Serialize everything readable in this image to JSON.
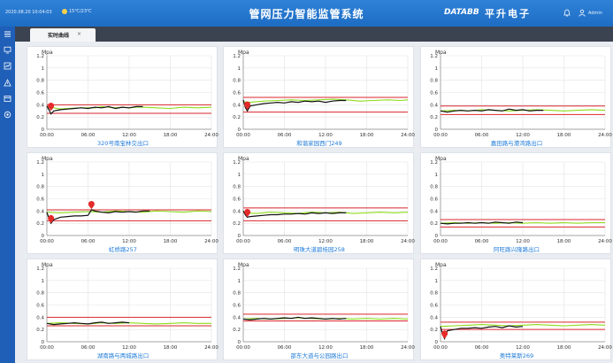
{
  "header": {
    "datetime": "2020.08.20  10:04:03",
    "weather": "15℃/23℃",
    "title": "管网压力智能监管系统",
    "brand": "DATABB",
    "brand_cn": "平升电子",
    "user": "Admin",
    "accent": "#2f82d8"
  },
  "sidebar": {
    "icons": [
      "menu-icon",
      "monitor-icon",
      "chart-icon",
      "alarm-icon",
      "report-icon",
      "settings-icon"
    ]
  },
  "tabs": [
    {
      "label": "实时曲线",
      "close": "×"
    }
  ],
  "chart_data": [
    {
      "type": "line",
      "title": "320号南宝林交出口",
      "ylabel": "Mpa",
      "ylim": [
        0,
        1.2
      ],
      "xlim": [
        0,
        24
      ],
      "yticks": [
        "0",
        "0.2",
        "0.4",
        "0.6",
        "0.8",
        "1",
        "1.2"
      ],
      "xticks": [
        "00:00",
        "06:00",
        "12:00",
        "18:00",
        "24:00"
      ],
      "limits": [
        0.4,
        0.26
      ],
      "alarm_markers": [
        0.3
      ],
      "series": [
        {
          "color": "#8ddc1a",
          "x": [
            0,
            1,
            2,
            3,
            5,
            7,
            8,
            10,
            11,
            12,
            13,
            14,
            16,
            18,
            20,
            22,
            24
          ],
          "y": [
            0.37,
            0.35,
            0.33,
            0.34,
            0.35,
            0.35,
            0.37,
            0.35,
            0.36,
            0.35,
            0.36,
            0.36,
            0.35,
            0.34,
            0.36,
            0.35,
            0.36
          ]
        },
        {
          "color": "#111111",
          "x": [
            0,
            0.3,
            0.6,
            1,
            2,
            3,
            4,
            5,
            6,
            7,
            8,
            9,
            10,
            11,
            12,
            13,
            14
          ],
          "y": [
            0.38,
            0.32,
            0.25,
            0.3,
            0.32,
            0.33,
            0.34,
            0.35,
            0.34,
            0.36,
            0.35,
            0.37,
            0.34,
            0.36,
            0.35,
            0.37,
            0.37
          ]
        }
      ]
    },
    {
      "type": "line",
      "title": "和谐家园西门249",
      "ylabel": "Mpa",
      "ylim": [
        0,
        1.2
      ],
      "xlim": [
        0,
        24
      ],
      "yticks": [
        "0",
        "0.2",
        "0.4",
        "0.6",
        "0.8",
        "1",
        "1.2"
      ],
      "xticks": [
        "00:00",
        "06:00",
        "12:00",
        "18:00",
        "24:00"
      ],
      "limits": [
        0.52,
        0.28
      ],
      "alarm_markers": [
        0.32
      ],
      "series": [
        {
          "color": "#8ddc1a",
          "x": [
            0,
            1,
            3,
            5,
            7,
            9,
            11,
            13,
            15,
            17,
            19,
            21,
            23,
            24
          ],
          "y": [
            0.45,
            0.44,
            0.46,
            0.47,
            0.48,
            0.47,
            0.48,
            0.49,
            0.48,
            0.46,
            0.47,
            0.48,
            0.47,
            0.48
          ]
        },
        {
          "color": "#111111",
          "x": [
            0,
            0.3,
            0.6,
            1,
            2,
            3,
            4,
            5,
            6,
            7,
            8,
            9,
            10,
            11,
            12,
            13,
            14,
            15
          ],
          "y": [
            0.48,
            0.36,
            0.3,
            0.38,
            0.4,
            0.42,
            0.43,
            0.44,
            0.43,
            0.45,
            0.44,
            0.46,
            0.45,
            0.46,
            0.44,
            0.46,
            0.47,
            0.47
          ]
        }
      ]
    },
    {
      "type": "line",
      "title": "嘉田路与港湾路出口",
      "ylabel": "Mpa",
      "ylim": [
        0,
        1.2
      ],
      "xlim": [
        0,
        24
      ],
      "yticks": [
        "0",
        "0.2",
        "0.4",
        "0.6",
        "0.8",
        "1",
        "1.2"
      ],
      "xticks": [
        "00:00",
        "06:00",
        "12:00",
        "18:00",
        "24:00"
      ],
      "limits": [
        0.38,
        0.24
      ],
      "alarm_markers": [],
      "series": [
        {
          "color": "#8ddc1a",
          "x": [
            0,
            2,
            4,
            6,
            8,
            10,
            12,
            14,
            16,
            18,
            20,
            22,
            24
          ],
          "y": [
            0.3,
            0.31,
            0.3,
            0.32,
            0.31,
            0.3,
            0.31,
            0.32,
            0.31,
            0.3,
            0.31,
            0.32,
            0.31
          ]
        },
        {
          "color": "#111111",
          "x": [
            0,
            1,
            2,
            3,
            4,
            5,
            6,
            7,
            8,
            9,
            10,
            11,
            12,
            13,
            14,
            15
          ],
          "y": [
            0.3,
            0.28,
            0.3,
            0.31,
            0.3,
            0.31,
            0.3,
            0.32,
            0.31,
            0.3,
            0.33,
            0.31,
            0.32,
            0.3,
            0.31,
            0.31
          ]
        }
      ]
    },
    {
      "type": "line",
      "title": "虹桥路257",
      "ylabel": "Mpa",
      "ylim": [
        0,
        1.2
      ],
      "xlim": [
        0,
        24
      ],
      "yticks": [
        "0",
        "0.2",
        "0.4",
        "0.6",
        "0.8",
        "1",
        "1.2"
      ],
      "xticks": [
        "00:00",
        "06:00",
        "12:00",
        "18:00",
        "24:00"
      ],
      "limits": [
        0.42,
        0.24
      ],
      "alarm_markers": [
        0.2,
        0.43
      ],
      "series": [
        {
          "color": "#8ddc1a",
          "x": [
            0,
            2,
            4,
            6,
            8,
            10,
            12,
            14,
            16,
            18,
            20,
            22,
            24
          ],
          "y": [
            0.38,
            0.37,
            0.38,
            0.39,
            0.38,
            0.4,
            0.39,
            0.38,
            0.4,
            0.39,
            0.38,
            0.4,
            0.39
          ]
        },
        {
          "color": "#111111",
          "x": [
            0,
            0.3,
            0.6,
            1,
            2,
            3,
            4,
            5,
            6,
            6.5,
            7,
            8,
            9,
            10,
            11,
            12,
            13,
            14,
            15
          ],
          "y": [
            0.38,
            0.28,
            0.2,
            0.26,
            0.3,
            0.31,
            0.32,
            0.32,
            0.33,
            0.42,
            0.4,
            0.38,
            0.37,
            0.39,
            0.38,
            0.39,
            0.38,
            0.4,
            0.4
          ]
        }
      ]
    },
    {
      "type": "line",
      "title": "明珠大道碧桂园258",
      "ylabel": "Mpa",
      "ylim": [
        0,
        1.2
      ],
      "xlim": [
        0,
        24
      ],
      "yticks": [
        "0",
        "0.2",
        "0.4",
        "0.6",
        "0.8",
        "1",
        "1.2"
      ],
      "xticks": [
        "00:00",
        "06:00",
        "12:00",
        "18:00",
        "24:00"
      ],
      "limits": [
        0.45,
        0.24
      ],
      "alarm_markers": [
        0.3
      ],
      "series": [
        {
          "color": "#8ddc1a",
          "x": [
            0,
            2,
            4,
            6,
            8,
            10,
            12,
            14,
            16,
            18,
            20,
            22,
            24
          ],
          "y": [
            0.37,
            0.36,
            0.38,
            0.37,
            0.36,
            0.38,
            0.37,
            0.38,
            0.36,
            0.37,
            0.38,
            0.37,
            0.38
          ]
        },
        {
          "color": "#111111",
          "x": [
            0,
            0.3,
            0.6,
            1,
            2,
            3,
            4,
            5,
            6,
            7,
            8,
            9,
            10,
            11,
            12,
            13,
            14,
            15
          ],
          "y": [
            0.4,
            0.34,
            0.3,
            0.31,
            0.32,
            0.33,
            0.34,
            0.34,
            0.35,
            0.35,
            0.36,
            0.35,
            0.37,
            0.36,
            0.37,
            0.36,
            0.37,
            0.37
          ]
        }
      ]
    },
    {
      "type": "line",
      "title": "阿旺路兴隆路出口",
      "ylabel": "Mpa",
      "ylim": [
        0,
        1.2
      ],
      "xlim": [
        0,
        24
      ],
      "yticks": [
        "0",
        "0.2",
        "0.4",
        "0.6",
        "0.8",
        "1",
        "1.2"
      ],
      "xticks": [
        "00:00",
        "06:00",
        "12:00",
        "18:00",
        "24:00"
      ],
      "limits": [
        0.26,
        0.14
      ],
      "alarm_markers": [],
      "series": [
        {
          "color": "#8ddc1a",
          "x": [
            0,
            2,
            4,
            6,
            8,
            10,
            12,
            14,
            16,
            18,
            20,
            22,
            24
          ],
          "y": [
            0.2,
            0.21,
            0.2,
            0.21,
            0.2,
            0.21,
            0.2,
            0.21,
            0.2,
            0.21,
            0.2,
            0.21,
            0.21
          ]
        },
        {
          "color": "#111111",
          "x": [
            0,
            1,
            2,
            3,
            4,
            5,
            6,
            7,
            8,
            9,
            10,
            11,
            12
          ],
          "y": [
            0.2,
            0.19,
            0.2,
            0.2,
            0.21,
            0.2,
            0.21,
            0.2,
            0.22,
            0.21,
            0.2,
            0.22,
            0.21
          ]
        }
      ]
    },
    {
      "type": "line",
      "title": "湖南路与两城路出口",
      "ylabel": "Mpa",
      "ylim": [
        0,
        1.2
      ],
      "xlim": [
        0,
        24
      ],
      "yticks": [
        "0",
        "0.2",
        "0.4",
        "0.6",
        "0.8",
        "1",
        "1.2"
      ],
      "xticks": [
        "00:00",
        "06:00",
        "12:00",
        "18:00",
        "24:00"
      ],
      "limits": [
        0.4,
        0.26
      ],
      "alarm_markers": [],
      "series": [
        {
          "color": "#8ddc1a",
          "x": [
            0,
            2,
            4,
            6,
            8,
            10,
            12,
            14,
            16,
            18,
            20,
            22,
            24
          ],
          "y": [
            0.3,
            0.31,
            0.3,
            0.29,
            0.31,
            0.3,
            0.31,
            0.3,
            0.29,
            0.3,
            0.31,
            0.3,
            0.3
          ]
        },
        {
          "color": "#111111",
          "x": [
            0,
            1,
            2,
            3,
            4,
            5,
            6,
            7,
            8,
            9,
            10,
            11,
            12
          ],
          "y": [
            0.3,
            0.28,
            0.29,
            0.3,
            0.31,
            0.3,
            0.29,
            0.31,
            0.32,
            0.3,
            0.31,
            0.32,
            0.31
          ]
        }
      ]
    },
    {
      "type": "line",
      "title": "邵东大道与公园路出口",
      "ylabel": "Mpa",
      "ylim": [
        0,
        1.2
      ],
      "xlim": [
        0,
        24
      ],
      "yticks": [
        "0",
        "0.2",
        "0.4",
        "0.6",
        "0.8",
        "1",
        "1.2"
      ],
      "xticks": [
        "00:00",
        "06:00",
        "12:00",
        "18:00",
        "24:00"
      ],
      "limits": [
        0.45,
        0.34
      ],
      "alarm_markers": [],
      "series": [
        {
          "color": "#8ddc1a",
          "x": [
            0,
            2,
            4,
            6,
            8,
            10,
            12,
            14,
            16,
            18,
            20,
            22,
            24
          ],
          "y": [
            0.37,
            0.38,
            0.37,
            0.38,
            0.39,
            0.38,
            0.37,
            0.38,
            0.37,
            0.38,
            0.37,
            0.38,
            0.37
          ]
        },
        {
          "color": "#111111",
          "x": [
            0,
            1,
            2,
            3,
            4,
            5,
            6,
            7,
            8,
            9,
            10,
            11,
            12,
            13,
            14,
            15
          ],
          "y": [
            0.37,
            0.36,
            0.37,
            0.38,
            0.37,
            0.38,
            0.39,
            0.38,
            0.4,
            0.38,
            0.39,
            0.38,
            0.37,
            0.38,
            0.37,
            0.38
          ]
        }
      ]
    },
    {
      "type": "line",
      "title": "奥特莱斯269",
      "ylabel": "Mpa",
      "ylim": [
        0,
        1.2
      ],
      "xlim": [
        0,
        24
      ],
      "yticks": [
        "0",
        "0.2",
        "0.4",
        "0.6",
        "0.8",
        "1",
        "1.2"
      ],
      "xticks": [
        "00:00",
        "06:00",
        "12:00",
        "18:00",
        "24:00"
      ],
      "limits": [
        0.32,
        0.2
      ],
      "alarm_markers": [
        0.05
      ],
      "series": [
        {
          "color": "#8ddc1a",
          "x": [
            0,
            2,
            4,
            6,
            8,
            10,
            12,
            14,
            16,
            18,
            20,
            22,
            24
          ],
          "y": [
            0.25,
            0.26,
            0.27,
            0.28,
            0.27,
            0.26,
            0.27,
            0.28,
            0.27,
            0.26,
            0.27,
            0.28,
            0.27
          ]
        },
        {
          "color": "#111111",
          "x": [
            0,
            0.3,
            0.6,
            1,
            2,
            3,
            4,
            5,
            6,
            7,
            8,
            9,
            10,
            11,
            12
          ],
          "y": [
            0.25,
            0.12,
            0.05,
            0.18,
            0.2,
            0.22,
            0.22,
            0.23,
            0.22,
            0.24,
            0.25,
            0.23,
            0.26,
            0.24,
            0.25
          ]
        }
      ]
    }
  ]
}
